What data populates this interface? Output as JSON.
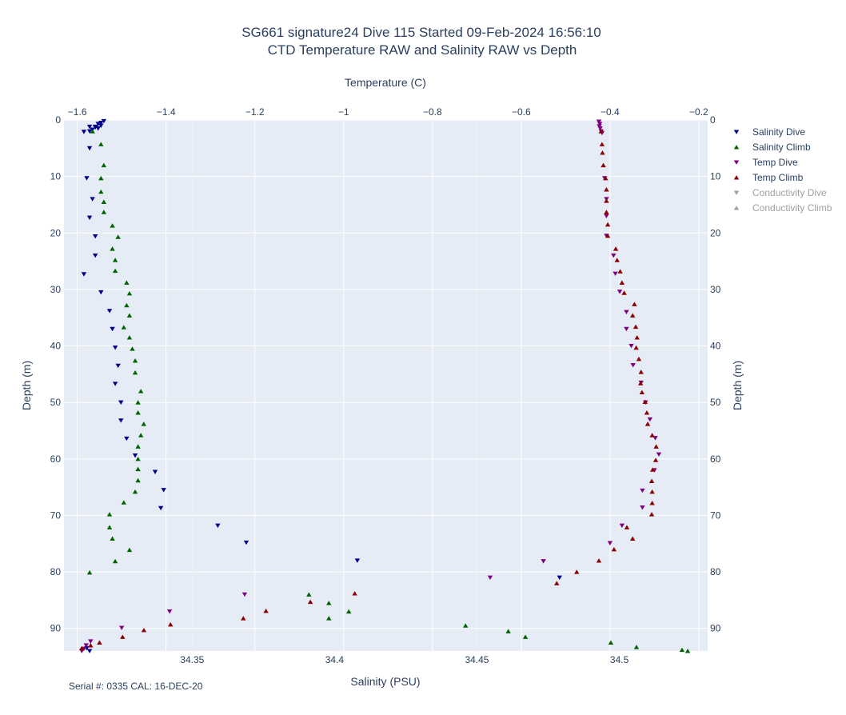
{
  "title_line1": "SG661 signature24 Dive 115 Started 09-Feb-2024 16:56:10",
  "title_line2": "CTD Temperature RAW and Salinity RAW vs Depth",
  "footnote": "Serial #: 0335  CAL: 16-DEC-20",
  "colors": {
    "salinity_dive": "#00008b",
    "salinity_climb": "#006400",
    "temp_dive": "#800080",
    "temp_climb": "#8b0000",
    "conductivity": "#a0a0a0",
    "plot_bg": "#e5ecf6"
  },
  "legend": [
    {
      "label": "Salinity Dive",
      "marker": "down",
      "color": "#00008b",
      "visible": true
    },
    {
      "label": "Salinity Climb",
      "marker": "up",
      "color": "#006400",
      "visible": true
    },
    {
      "label": "Temp Dive",
      "marker": "down",
      "color": "#800080",
      "visible": true
    },
    {
      "label": "Temp Climb",
      "marker": "up",
      "color": "#8b0000",
      "visible": true
    },
    {
      "label": "Conductivity Dive",
      "marker": "down",
      "color": "#a0a0a0",
      "visible": false
    },
    {
      "label": "Conductivity Climb",
      "marker": "up",
      "color": "#a0a0a0",
      "visible": false
    }
  ],
  "chart_data": {
    "type": "scatter",
    "title": "SG661 signature24 Dive 115 Started 09-Feb-2024 16:56:10 / CTD Temperature RAW and Salinity RAW vs Depth",
    "grid": true,
    "legend_position": "right",
    "y_axis": {
      "label": "Depth (m)",
      "range": [
        0,
        94
      ],
      "reversed": true,
      "ticks": [
        0,
        10,
        20,
        30,
        40,
        50,
        60,
        70,
        80,
        90
      ],
      "tick_labels": [
        "0",
        "10",
        "20",
        "30",
        "40",
        "50",
        "60",
        "70",
        "80",
        "90"
      ],
      "mirrored_right": true
    },
    "x_axis_bottom": {
      "label": "Salinity (PSU)",
      "range": [
        34.305,
        34.531
      ],
      "ticks": [
        34.35,
        34.4,
        34.45,
        34.5
      ],
      "tick_labels": [
        "34.35",
        "34.4",
        "34.45",
        "34.5"
      ]
    },
    "x_axis_top": {
      "label": "Temperature (C)",
      "range": [
        -1.63,
        -0.18
      ],
      "ticks": [
        -1.6,
        -1.4,
        -1.2,
        -1.0,
        -0.8,
        -0.6,
        -0.4,
        -0.2
      ],
      "tick_labels": [
        "−1.6",
        "−1.4",
        "−1.2",
        "−1",
        "−0.8",
        "−0.6",
        "−0.4",
        "−0.2"
      ]
    },
    "series": [
      {
        "name": "Salinity Dive",
        "axis": "bottom",
        "marker": "down",
        "points": [
          [
            34.319,
            0.2
          ],
          [
            34.318,
            0.5
          ],
          [
            34.317,
            0.7
          ],
          [
            34.318,
            1.0
          ],
          [
            34.316,
            1.2
          ],
          [
            34.317,
            1.5
          ],
          [
            34.314,
            1.2
          ],
          [
            34.315,
            1.7
          ],
          [
            34.316,
            1.3
          ],
          [
            34.314,
            2.0
          ],
          [
            34.312,
            2.1
          ],
          [
            34.314,
            5.0
          ],
          [
            34.313,
            10.3
          ],
          [
            34.315,
            14.0
          ],
          [
            34.314,
            17.3
          ],
          [
            34.316,
            20.6
          ],
          [
            34.316,
            24.0
          ],
          [
            34.312,
            27.3
          ],
          [
            34.318,
            30.5
          ],
          [
            34.321,
            33.8
          ],
          [
            34.322,
            37.0
          ],
          [
            34.323,
            40.3
          ],
          [
            34.324,
            43.5
          ],
          [
            34.323,
            46.7
          ],
          [
            34.325,
            50.0
          ],
          [
            34.325,
            53.2
          ],
          [
            34.327,
            56.4
          ],
          [
            34.33,
            59.4
          ],
          [
            34.337,
            62.3
          ],
          [
            34.34,
            65.5
          ],
          [
            34.339,
            68.7
          ],
          [
            34.359,
            71.8
          ],
          [
            34.369,
            74.8
          ],
          [
            34.408,
            78.0
          ],
          [
            34.479,
            81.0
          ],
          [
            34.313,
            93.5
          ],
          [
            34.314,
            94.0
          ]
        ]
      },
      {
        "name": "Salinity Climb",
        "axis": "bottom",
        "marker": "up",
        "points": [
          [
            34.315,
            2.0
          ],
          [
            34.318,
            4.3
          ],
          [
            34.319,
            8.0
          ],
          [
            34.318,
            10.3
          ],
          [
            34.318,
            12.7
          ],
          [
            34.319,
            14.5
          ],
          [
            34.319,
            16.3
          ],
          [
            34.322,
            18.7
          ],
          [
            34.324,
            20.7
          ],
          [
            34.322,
            22.8
          ],
          [
            34.323,
            24.8
          ],
          [
            34.323,
            26.7
          ],
          [
            34.327,
            28.8
          ],
          [
            34.328,
            30.7
          ],
          [
            34.327,
            32.8
          ],
          [
            34.328,
            34.6
          ],
          [
            34.326,
            36.7
          ],
          [
            34.328,
            38.5
          ],
          [
            34.329,
            40.5
          ],
          [
            34.33,
            42.6
          ],
          [
            34.33,
            44.7
          ],
          [
            34.332,
            48.0
          ],
          [
            34.331,
            50.0
          ],
          [
            34.331,
            51.8
          ],
          [
            34.333,
            53.8
          ],
          [
            34.332,
            55.8
          ],
          [
            34.331,
            57.8
          ],
          [
            34.331,
            60.0
          ],
          [
            34.331,
            61.8
          ],
          [
            34.331,
            63.8
          ],
          [
            34.33,
            65.8
          ],
          [
            34.326,
            67.7
          ],
          [
            34.321,
            69.8
          ],
          [
            34.321,
            72.1
          ],
          [
            34.322,
            74.1
          ],
          [
            34.328,
            76.1
          ],
          [
            34.323,
            78.1
          ],
          [
            34.314,
            80.1
          ],
          [
            34.391,
            84.0
          ],
          [
            34.398,
            85.5
          ],
          [
            34.405,
            87.0
          ],
          [
            34.398,
            88.2
          ],
          [
            34.446,
            89.5
          ],
          [
            34.461,
            90.5
          ],
          [
            34.467,
            91.5
          ],
          [
            34.497,
            92.5
          ],
          [
            34.506,
            93.3
          ],
          [
            34.522,
            93.8
          ],
          [
            34.524,
            94.0
          ]
        ]
      },
      {
        "name": "Temp Dive",
        "axis": "top",
        "marker": "down",
        "points": [
          [
            -0.425,
            0.3
          ],
          [
            -0.423,
            0.7
          ],
          [
            -0.424,
            1.1
          ],
          [
            -0.422,
            1.5
          ],
          [
            -0.42,
            2.0
          ],
          [
            -0.418,
            2.3
          ],
          [
            -0.412,
            10.3
          ],
          [
            -0.408,
            14.0
          ],
          [
            -0.408,
            17.0
          ],
          [
            -0.408,
            20.5
          ],
          [
            -0.392,
            24.0
          ],
          [
            -0.388,
            27.2
          ],
          [
            -0.378,
            30.4
          ],
          [
            -0.363,
            34.0
          ],
          [
            -0.363,
            37.0
          ],
          [
            -0.352,
            40.0
          ],
          [
            -0.348,
            43.4
          ],
          [
            -0.33,
            46.5
          ],
          [
            -0.32,
            50.0
          ],
          [
            -0.31,
            53.0
          ],
          [
            -0.298,
            56.3
          ],
          [
            -0.29,
            59.2
          ],
          [
            -0.3,
            62.0
          ],
          [
            -0.327,
            65.6
          ],
          [
            -0.327,
            68.6
          ],
          [
            -0.373,
            71.8
          ],
          [
            -0.4,
            74.9
          ],
          [
            -0.55,
            78.1
          ],
          [
            -0.67,
            81.0
          ],
          [
            -1.223,
            84.0
          ],
          [
            -1.392,
            87.0
          ],
          [
            -1.5,
            89.9
          ],
          [
            -1.57,
            92.3
          ],
          [
            -1.58,
            93.0
          ],
          [
            -1.585,
            93.6
          ],
          [
            -1.59,
            94.0
          ]
        ]
      },
      {
        "name": "Temp Climb",
        "axis": "top",
        "marker": "up",
        "points": [
          [
            -0.42,
            2.0
          ],
          [
            -0.418,
            4.3
          ],
          [
            -0.417,
            5.8
          ],
          [
            -0.415,
            8.0
          ],
          [
            -0.41,
            10.3
          ],
          [
            -0.408,
            12.3
          ],
          [
            -0.408,
            14.3
          ],
          [
            -0.408,
            16.3
          ],
          [
            -0.405,
            18.5
          ],
          [
            -0.405,
            20.5
          ],
          [
            -0.387,
            22.8
          ],
          [
            -0.384,
            24.8
          ],
          [
            -0.377,
            26.8
          ],
          [
            -0.373,
            28.8
          ],
          [
            -0.368,
            30.6
          ],
          [
            -0.345,
            32.6
          ],
          [
            -0.349,
            34.6
          ],
          [
            -0.342,
            36.6
          ],
          [
            -0.339,
            38.5
          ],
          [
            -0.341,
            40.3
          ],
          [
            -0.335,
            42.3
          ],
          [
            -0.33,
            44.6
          ],
          [
            -0.331,
            46.6
          ],
          [
            -0.328,
            48.2
          ],
          [
            -0.321,
            49.9
          ],
          [
            -0.317,
            51.8
          ],
          [
            -0.315,
            53.8
          ],
          [
            -0.305,
            55.8
          ],
          [
            -0.296,
            57.8
          ],
          [
            -0.297,
            60.2
          ],
          [
            -0.304,
            61.9
          ],
          [
            -0.306,
            63.9
          ],
          [
            -0.305,
            65.8
          ],
          [
            -0.305,
            67.8
          ],
          [
            -0.306,
            69.8
          ],
          [
            -0.362,
            72.1
          ],
          [
            -0.349,
            74.1
          ],
          [
            -0.391,
            76.0
          ],
          [
            -0.425,
            78.0
          ],
          [
            -0.475,
            80.0
          ],
          [
            -0.52,
            82.0
          ],
          [
            -0.975,
            83.8
          ],
          [
            -1.075,
            85.3
          ],
          [
            -1.175,
            86.9
          ],
          [
            -1.226,
            88.2
          ],
          [
            -1.39,
            89.3
          ],
          [
            -1.45,
            90.3
          ],
          [
            -1.498,
            91.5
          ],
          [
            -1.55,
            92.5
          ],
          [
            -1.57,
            93.0
          ],
          [
            -1.59,
            93.5
          ]
        ]
      }
    ]
  }
}
